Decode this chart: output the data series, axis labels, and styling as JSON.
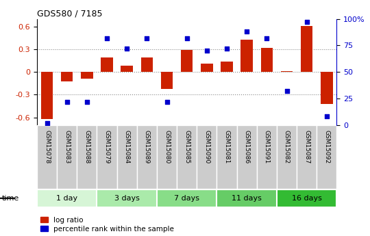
{
  "title": "GDS580 / 7185",
  "samples": [
    "GSM15078",
    "GSM15083",
    "GSM15088",
    "GSM15079",
    "GSM15084",
    "GSM15089",
    "GSM15080",
    "GSM15085",
    "GSM15090",
    "GSM15081",
    "GSM15086",
    "GSM15091",
    "GSM15082",
    "GSM15087",
    "GSM15092"
  ],
  "log_ratio": [
    -0.62,
    -0.12,
    -0.09,
    0.19,
    0.08,
    0.19,
    -0.22,
    0.29,
    0.11,
    0.14,
    0.43,
    0.32,
    0.01,
    0.61,
    -0.42
  ],
  "percentile": [
    2,
    22,
    22,
    82,
    72,
    82,
    22,
    82,
    70,
    72,
    88,
    82,
    32,
    97,
    8
  ],
  "groups": [
    {
      "label": "1 day",
      "start": 0,
      "end": 3,
      "color": "#d6f5d6"
    },
    {
      "label": "3 days",
      "start": 3,
      "end": 6,
      "color": "#aaeaaa"
    },
    {
      "label": "7 days",
      "start": 6,
      "end": 9,
      "color": "#88dd88"
    },
    {
      "label": "11 days",
      "start": 9,
      "end": 12,
      "color": "#66cc66"
    },
    {
      "label": "16 days",
      "start": 12,
      "end": 15,
      "color": "#33bb33"
    }
  ],
  "ylim": [
    -0.7,
    0.7
  ],
  "y2lim": [
    0,
    100
  ],
  "yticks": [
    -0.6,
    -0.3,
    0.0,
    0.3,
    0.6
  ],
  "y2ticks": [
    0,
    25,
    50,
    75,
    100
  ],
  "ytick_labels": [
    "-0.6",
    "-0.3",
    "0",
    "0.3",
    "0.6"
  ],
  "y2tick_labels": [
    "0",
    "25",
    "50",
    "75",
    "100%"
  ],
  "bar_color": "#cc2200",
  "dot_color": "#0000cc",
  "grid_color": "#888888",
  "label_log": "log ratio",
  "label_pct": "percentile rank within the sample",
  "time_label": "time",
  "sample_bg": "#cccccc",
  "sample_sep": "#ffffff"
}
